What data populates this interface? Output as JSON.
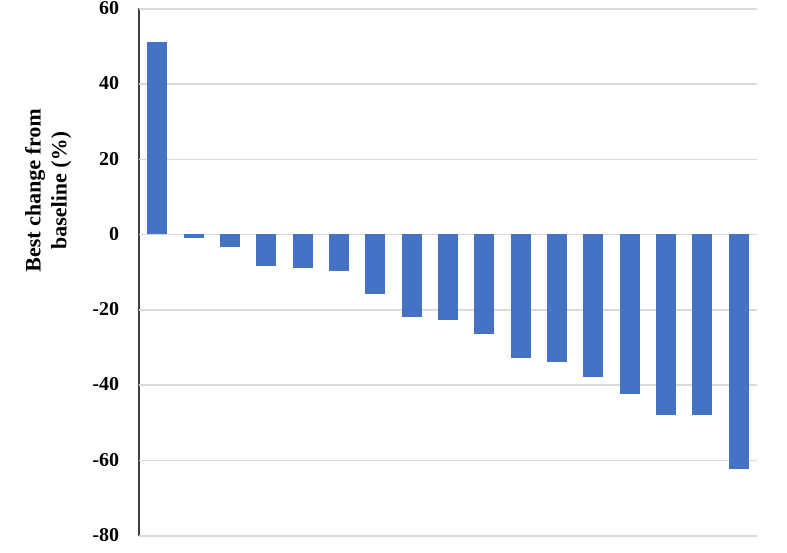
{
  "chart_data": {
    "type": "bar",
    "title": "",
    "xlabel": "",
    "ylabel": "Best change from baseline (%)",
    "values": [
      51,
      -1,
      -3.5,
      -8.5,
      -9,
      -10,
      -16,
      -22,
      -23,
      -26.5,
      -33,
      -34,
      -38,
      -42.5,
      -48,
      -48,
      -62.5
    ],
    "categories": [
      "",
      "",
      "",
      "",
      "",
      "",
      "",
      "",
      "",
      "",
      "",
      "",
      "",
      "",
      "",
      "",
      ""
    ],
    "yticks": [
      60,
      40,
      20,
      0,
      -20,
      -40,
      -60,
      -80
    ],
    "ylim": [
      -80,
      60
    ],
    "grid": true,
    "legend": false,
    "x_axis_labels_visible": false,
    "colors": {
      "bar": "#4472C4",
      "gridline": "#D9D9D9",
      "axis_line": "#3F3F3F",
      "text": "#000000",
      "background": "#FFFFFF"
    }
  }
}
